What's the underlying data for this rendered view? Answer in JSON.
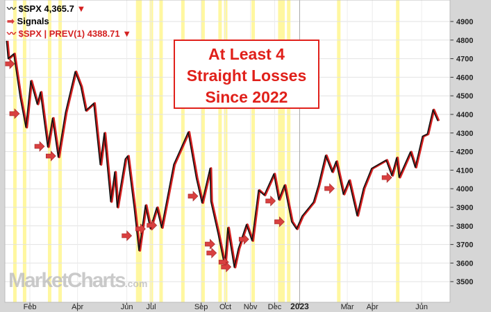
{
  "legend": {
    "main": "$SPX 4,365.7",
    "signals": "Signals",
    "prev": "$SPX | PREV(1) 4388.71"
  },
  "callout": [
    "At Least 4",
    "Straight Losses",
    "Since 2022"
  ],
  "watermark": "MarketCharts.com",
  "colors": {
    "price": "#111111",
    "prev": "#d42020",
    "signal": "#d84040",
    "highlight": "#fff7a0",
    "callout": "#e0201a"
  },
  "chart_data": {
    "type": "line",
    "ylim": [
      3450,
      4990
    ],
    "yticks": [
      3500,
      3600,
      3700,
      3800,
      3900,
      4000,
      4100,
      4200,
      4300,
      4400,
      4500,
      4600,
      4700,
      4800,
      4900
    ],
    "xlim": [
      "2022-01-01",
      "2023-07-01"
    ],
    "xticks": [
      {
        "date": "2022-02-01",
        "label": "Feb"
      },
      {
        "date": "2022-04-01",
        "label": "Apr"
      },
      {
        "date": "2022-06-01",
        "label": "Jun"
      },
      {
        "date": "2022-07-01",
        "label": "Jul"
      },
      {
        "date": "2022-09-01",
        "label": "Sep"
      },
      {
        "date": "2022-10-01",
        "label": "Oct"
      },
      {
        "date": "2022-11-01",
        "label": "Nov"
      },
      {
        "date": "2022-12-01",
        "label": "Dec"
      },
      {
        "date": "2023-01-01",
        "label": "2023",
        "bold": true
      },
      {
        "date": "2023-03-01",
        "label": "Mar"
      },
      {
        "date": "2023-04-01",
        "label": "Apr"
      },
      {
        "date": "2023-06-01",
        "label": "Jun"
      }
    ],
    "grid": true,
    "series": [
      {
        "name": "$SPX",
        "points": [
          [
            "2022-01-03",
            4796
          ],
          [
            "2022-01-05",
            4700
          ],
          [
            "2022-01-12",
            4726
          ],
          [
            "2022-01-20",
            4490
          ],
          [
            "2022-01-27",
            4330
          ],
          [
            "2022-02-02",
            4580
          ],
          [
            "2022-02-10",
            4455
          ],
          [
            "2022-02-14",
            4520
          ],
          [
            "2022-02-23",
            4225
          ],
          [
            "2022-03-01",
            4380
          ],
          [
            "2022-03-08",
            4170
          ],
          [
            "2022-03-17",
            4410
          ],
          [
            "2022-03-29",
            4630
          ],
          [
            "2022-04-05",
            4550
          ],
          [
            "2022-04-11",
            4420
          ],
          [
            "2022-04-21",
            4460
          ],
          [
            "2022-04-29",
            4130
          ],
          [
            "2022-05-04",
            4300
          ],
          [
            "2022-05-12",
            3930
          ],
          [
            "2022-05-17",
            4090
          ],
          [
            "2022-05-20",
            3900
          ],
          [
            "2022-05-30",
            4160
          ],
          [
            "2022-06-02",
            4176
          ],
          [
            "2022-06-10",
            3900
          ],
          [
            "2022-06-16",
            3667
          ],
          [
            "2022-06-24",
            3911
          ],
          [
            "2022-06-30",
            3785
          ],
          [
            "2022-07-08",
            3899
          ],
          [
            "2022-07-14",
            3790
          ],
          [
            "2022-07-29",
            4130
          ],
          [
            "2022-08-16",
            4305
          ],
          [
            "2022-08-26",
            4057
          ],
          [
            "2022-09-02",
            3924
          ],
          [
            "2022-09-12",
            4110
          ],
          [
            "2022-09-13",
            3932
          ],
          [
            "2022-09-22",
            3757
          ],
          [
            "2022-09-30",
            3585
          ],
          [
            "2022-10-04",
            3790
          ],
          [
            "2022-10-12",
            3577
          ],
          [
            "2022-10-17",
            3677
          ],
          [
            "2022-10-27",
            3807
          ],
          [
            "2022-11-03",
            3720
          ],
          [
            "2022-11-11",
            3992
          ],
          [
            "2022-11-18",
            3965
          ],
          [
            "2022-11-30",
            4080
          ],
          [
            "2022-12-06",
            3941
          ],
          [
            "2022-12-13",
            4019
          ],
          [
            "2022-12-22",
            3822
          ],
          [
            "2022-12-28",
            3783
          ],
          [
            "2023-01-04",
            3853
          ],
          [
            "2023-01-18",
            3928
          ],
          [
            "2023-01-24",
            4016
          ],
          [
            "2023-02-02",
            4179
          ],
          [
            "2023-02-10",
            4090
          ],
          [
            "2023-02-15",
            4147
          ],
          [
            "2023-02-24",
            3970
          ],
          [
            "2023-03-03",
            4045
          ],
          [
            "2023-03-13",
            3855
          ],
          [
            "2023-03-21",
            4002
          ],
          [
            "2023-03-31",
            4109
          ],
          [
            "2023-04-18",
            4154
          ],
          [
            "2023-04-25",
            4071
          ],
          [
            "2023-05-01",
            4167
          ],
          [
            "2023-05-04",
            4061
          ],
          [
            "2023-05-18",
            4198
          ],
          [
            "2023-05-24",
            4115
          ],
          [
            "2023-06-02",
            4282
          ],
          [
            "2023-06-08",
            4294
          ],
          [
            "2023-06-15",
            4425
          ],
          [
            "2023-06-21",
            4365
          ]
        ]
      }
    ],
    "signals": [
      [
        "2022-01-07",
        4672
      ],
      [
        "2022-01-13",
        4404
      ],
      [
        "2022-02-13",
        4228
      ],
      [
        "2022-02-27",
        4176
      ],
      [
        "2022-06-01",
        3747
      ],
      [
        "2022-06-18",
        3784
      ],
      [
        "2022-07-02",
        3803
      ],
      [
        "2022-08-22",
        3960
      ],
      [
        "2022-09-12",
        3702
      ],
      [
        "2022-09-14",
        3654
      ],
      [
        "2022-09-29",
        3605
      ],
      [
        "2022-10-02",
        3579
      ],
      [
        "2022-10-24",
        3728
      ],
      [
        "2022-11-26",
        3934
      ],
      [
        "2022-12-07",
        3822
      ],
      [
        "2023-02-07",
        4001
      ],
      [
        "2023-04-19",
        4060
      ]
    ],
    "highlight_dates": [
      "2022-01-13",
      "2022-01-25",
      "2022-02-25",
      "2022-03-10",
      "2022-06-14",
      "2022-06-17",
      "2022-07-01",
      "2022-07-13",
      "2022-08-09",
      "2022-09-03",
      "2022-09-24",
      "2022-10-01",
      "2022-11-04",
      "2022-12-07",
      "2022-12-11",
      "2022-12-18",
      "2023-02-18",
      "2023-05-02"
    ]
  }
}
